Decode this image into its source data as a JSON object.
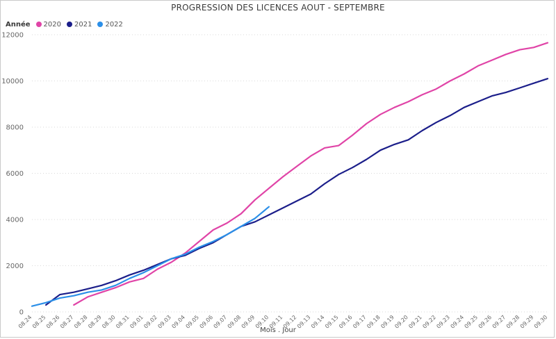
{
  "chart_data": {
    "type": "line",
    "title": "PROGRESSION DES LICENCES AOUT - SEPTEMBRE",
    "xlabel": "Mois . Jour",
    "ylabel": "",
    "legend_title": "Année",
    "legend_position": "top-left",
    "grid": true,
    "ylim": [
      0,
      12000
    ],
    "yticks": [
      "0",
      "2000",
      "4000",
      "6000",
      "8000",
      "10000",
      "12000"
    ],
    "categories": [
      "08.24",
      "08.25",
      "08.26",
      "08.27",
      "08.28",
      "08.29",
      "08.30",
      "08.31",
      "09.01",
      "09.02",
      "09.03",
      "09.04",
      "09.05",
      "09.06",
      "09.07",
      "09.08",
      "09.09",
      "09.10",
      "09.11",
      "09.12",
      "09.13",
      "09.14",
      "09.15",
      "09.16",
      "09.17",
      "09.18",
      "09.19",
      "09.20",
      "09.21",
      "09.22",
      "09.23",
      "09.24",
      "09.25",
      "09.26",
      "09.27",
      "09.28",
      "09.29",
      "09.30"
    ],
    "series": [
      {
        "name": "2020",
        "color": "#E044A7",
        "values": [
          null,
          null,
          null,
          300,
          650,
          850,
          1050,
          1300,
          1450,
          1850,
          2150,
          2550,
          3050,
          3550,
          3850,
          4250,
          4850,
          5350,
          5850,
          6300,
          6750,
          7100,
          7200,
          7650,
          8150,
          8550,
          8850,
          9100,
          9400,
          9650,
          10000,
          10300,
          10650,
          10900,
          11150,
          11350,
          11450,
          11650
        ]
      },
      {
        "name": "2021",
        "color": "#1B1E8A",
        "values": [
          null,
          300,
          750,
          850,
          1000,
          1150,
          1350,
          1600,
          1800,
          2050,
          2300,
          2450,
          2750,
          3000,
          3350,
          3700,
          3900,
          4200,
          4500,
          4800,
          5100,
          5550,
          5950,
          6250,
          6600,
          7000,
          7250,
          7450,
          7850,
          8200,
          8500,
          8850,
          9100,
          9350,
          9500,
          9700,
          9900,
          10100
        ]
      },
      {
        "name": "2022",
        "color": "#2B8FE8",
        "values": [
          250,
          400,
          600,
          700,
          850,
          950,
          1150,
          1450,
          1700,
          2000,
          2300,
          2500,
          2800,
          3050,
          3350,
          3700,
          4050,
          4550,
          null,
          null,
          null,
          null,
          null,
          null,
          null,
          null,
          null,
          null,
          null,
          null,
          null,
          null,
          null,
          null,
          null,
          null,
          null,
          null
        ]
      }
    ]
  }
}
